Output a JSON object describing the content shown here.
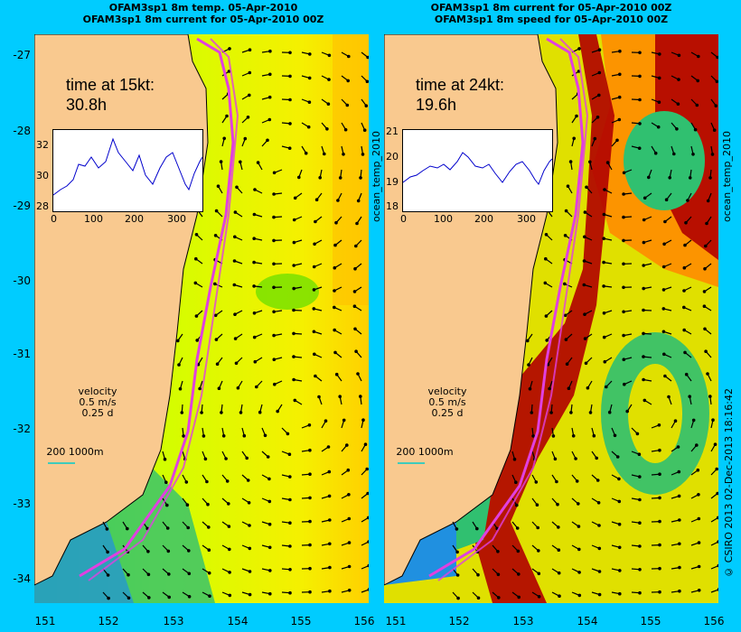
{
  "titles": {
    "left_line1": "OFAM3sp1 8m temp. 05-Apr-2010",
    "left_line2": "OFAM3sp1 8m current for 05-Apr-2010 00Z",
    "right_line1": "OFAM3sp1 8m current for 05-Apr-2010 00Z",
    "right_line2": "OFAM3sp1 8m speed for 05-Apr-2010 00Z"
  },
  "latitude_ticks": [
    "-27",
    "-28",
    "-29",
    "-30",
    "-31",
    "-32",
    "-33",
    "-34"
  ],
  "longitude_ticks": [
    "151",
    "152",
    "153",
    "154",
    "155",
    "156"
  ],
  "left_panel": {
    "time_label": "time at 15kt:",
    "time_value": "30.8h",
    "inset_y_ticks": [
      "32",
      "30",
      "28"
    ],
    "inset_x_ticks": [
      "0",
      "100",
      "200",
      "300"
    ],
    "velocity_label": "velocity",
    "velocity_speed": "0.5 m/s",
    "velocity_time": "0.25 d",
    "contour_label": "200  1000m"
  },
  "right_panel": {
    "time_label": "time at 24kt:",
    "time_value": "19.6h",
    "inset_y_ticks": [
      "21",
      "20",
      "19",
      "18"
    ],
    "inset_x_ticks": [
      "0",
      "100",
      "200",
      "300"
    ],
    "velocity_label": "velocity",
    "velocity_speed": "0.5 m/s",
    "velocity_time": "0.25 d",
    "contour_label": "200  1000m"
  },
  "side_labels": {
    "left_panel_side": "ocean_temp_2010",
    "right_panel_side": "ocean_temp_2010",
    "credit": "© CSIRO 2013   02-Dec-2013 18:16:42"
  },
  "colors": {
    "background": "#00ccff",
    "land": "#f9c98f",
    "track": "#e040e0",
    "inset_line": "#0000cc"
  }
}
